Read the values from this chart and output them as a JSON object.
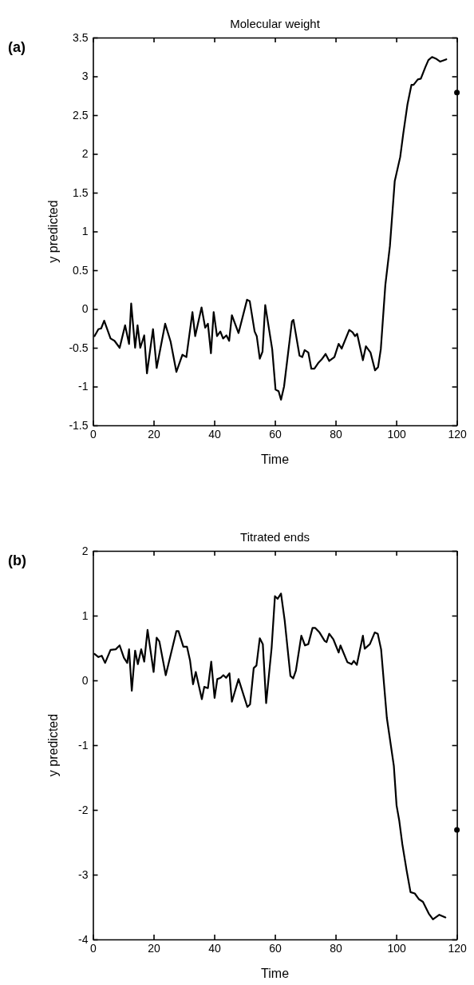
{
  "chart_data": [
    {
      "type": "line",
      "title": "Molecular weight",
      "xlabel": "Time",
      "ylabel": "y predicted",
      "annotations": [
        "(a)"
      ],
      "xlim": [
        0,
        120
      ],
      "xticks": [
        0,
        20,
        40,
        60,
        80,
        100,
        120
      ],
      "ylim": [
        -1.5,
        3.5
      ],
      "yticks": [
        -1.5,
        -1,
        -0.5,
        0,
        0.5,
        1,
        1.5,
        2,
        2.5,
        3,
        3.5
      ],
      "series": [
        {
          "color": "#000000",
          "x": [
            0.5,
            1.8,
            2.7,
            3.7,
            5.8,
            7.1,
            8.8,
            10.6,
            11.9,
            12.6,
            13.9,
            14.7,
            15.6,
            16.9,
            17.8,
            19.8,
            21,
            23.8,
            25.6,
            27.5,
            29.5,
            30.8,
            32.8,
            33.7,
            35.8,
            37,
            37.9,
            38.9,
            39.8,
            40.9,
            42,
            42.9,
            44,
            44.9,
            45.8,
            48,
            50.8,
            51.7,
            53.3,
            54,
            55,
            55.9,
            56.8,
            59.1,
            60.2,
            61.2,
            62,
            63,
            65.6,
            66.1,
            68.1,
            69,
            69.8,
            71,
            72,
            73,
            74.4,
            75.4,
            76.7,
            77.9,
            79.6,
            81,
            82,
            84.5,
            85.6,
            86.4,
            87.1,
            89,
            90,
            91.5,
            93,
            94,
            94.9,
            96.4,
            97.9,
            99.5,
            101.3,
            102.3,
            103.7,
            105,
            105.7,
            107.1,
            108.1,
            109.6,
            110.6,
            111.8,
            113,
            114.5,
            116.5
          ],
          "values": [
            -0.35,
            -0.26,
            -0.25,
            -0.15,
            -0.38,
            -0.41,
            -0.5,
            -0.21,
            -0.45,
            0.07,
            -0.5,
            -0.21,
            -0.5,
            -0.34,
            -0.83,
            -0.26,
            -0.76,
            -0.19,
            -0.42,
            -0.81,
            -0.59,
            -0.62,
            -0.04,
            -0.35,
            0.02,
            -0.24,
            -0.19,
            -0.57,
            -0.04,
            -0.35,
            -0.29,
            -0.38,
            -0.34,
            -0.41,
            -0.08,
            -0.31,
            0.12,
            0.1,
            -0.29,
            -0.35,
            -0.64,
            -0.55,
            0.05,
            -0.52,
            -1.04,
            -1.06,
            -1.17,
            -1.0,
            -0.16,
            -0.14,
            -0.6,
            -0.62,
            -0.53,
            -0.56,
            -0.77,
            -0.77,
            -0.69,
            -0.65,
            -0.58,
            -0.67,
            -0.62,
            -0.45,
            -0.51,
            -0.27,
            -0.3,
            -0.35,
            -0.32,
            -0.66,
            -0.48,
            -0.56,
            -0.79,
            -0.75,
            -0.52,
            0.31,
            0.81,
            1.65,
            1.96,
            2.26,
            2.64,
            2.89,
            2.89,
            2.96,
            2.97,
            3.12,
            3.21,
            3.25,
            3.23,
            3.19,
            3.22
          ]
        },
        {
          "type": "scatter",
          "color": "#000000",
          "x": [
            120
          ],
          "values": [
            2.79
          ]
        }
      ]
    },
    {
      "type": "line",
      "title": "Titrated ends",
      "xlabel": "Time",
      "ylabel": "y predicted",
      "annotations": [
        "(b)"
      ],
      "xlim": [
        0,
        120
      ],
      "xticks": [
        0,
        20,
        40,
        60,
        80,
        100,
        120
      ],
      "ylim": [
        -4,
        2
      ],
      "yticks": [
        -4,
        -3,
        -2,
        -1,
        0,
        1,
        2
      ],
      "series": [
        {
          "color": "#000000",
          "x": [
            0.5,
            1.8,
            2.9,
            4,
            5.8,
            7.5,
            8.8,
            10.2,
            11.3,
            11.9,
            12.8,
            13.9,
            14.8,
            15.9,
            16.9,
            18,
            20,
            21,
            21.9,
            24,
            27.5,
            28.2,
            29.8,
            31,
            32,
            33,
            33.9,
            35.9,
            36.7,
            37.9,
            39,
            40.1,
            41,
            42.1,
            43,
            43.9,
            45,
            45.8,
            48,
            50.9,
            51.8,
            53,
            53.9,
            55,
            56,
            57.1,
            58.9,
            60,
            60.9,
            62,
            63.2,
            65.1,
            66,
            66.9,
            68.7,
            69.9,
            71,
            72.4,
            73.3,
            74.7,
            76.4,
            77,
            77.9,
            79.3,
            81,
            81.6,
            83.9,
            85.3,
            86,
            87,
            89,
            89.6,
            91.3,
            92.9,
            93.9,
            95,
            96.9,
            99.2,
            100.1,
            101,
            102,
            103.4,
            104.7,
            106.1,
            107.5,
            108.8,
            110.7,
            112.1,
            113,
            114.2,
            116.2
          ],
          "values": [
            0.41,
            0.36,
            0.38,
            0.27,
            0.47,
            0.48,
            0.54,
            0.35,
            0.27,
            0.48,
            -0.16,
            0.46,
            0.25,
            0.48,
            0.29,
            0.78,
            0.13,
            0.66,
            0.6,
            0.08,
            0.76,
            0.76,
            0.52,
            0.52,
            0.31,
            -0.06,
            0.13,
            -0.29,
            -0.1,
            -0.12,
            0.29,
            -0.27,
            0.02,
            0.04,
            0.08,
            0.04,
            0.11,
            -0.33,
            0.02,
            -0.41,
            -0.37,
            0.19,
            0.23,
            0.65,
            0.56,
            -0.35,
            0.5,
            1.3,
            1.26,
            1.34,
            0.93,
            0.07,
            0.03,
            0.15,
            0.69,
            0.54,
            0.56,
            0.81,
            0.81,
            0.74,
            0.61,
            0.59,
            0.72,
            0.63,
            0.43,
            0.54,
            0.28,
            0.25,
            0.3,
            0.24,
            0.69,
            0.49,
            0.56,
            0.74,
            0.72,
            0.48,
            -0.58,
            -1.32,
            -1.93,
            -2.17,
            -2.53,
            -2.93,
            -3.27,
            -3.29,
            -3.38,
            -3.42,
            -3.6,
            -3.69,
            -3.66,
            -3.62,
            -3.66
          ]
        },
        {
          "type": "scatter",
          "color": "#000000",
          "x": [
            120
          ],
          "values": [
            -2.31
          ]
        }
      ]
    }
  ]
}
